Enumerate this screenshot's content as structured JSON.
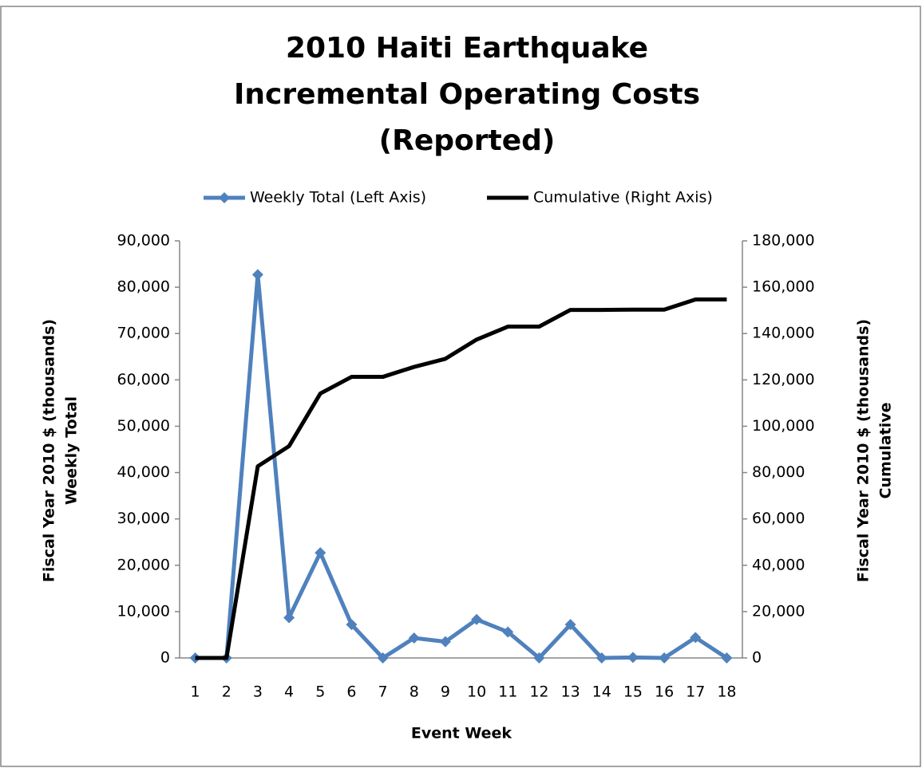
{
  "chart_data": {
    "type": "line",
    "title": [
      "2010 Haiti Earthquake",
      "Incremental Operating Costs",
      "(Reported)"
    ],
    "x_label": "Event Week",
    "y_label": [
      "Fiscal Year 2010 $ (thousands)",
      "Weekly Total"
    ],
    "y2_label": [
      "Fiscal Year 2010 $ (thousands)",
      "Cumulative"
    ],
    "categories": [
      "1",
      "2",
      "3",
      "4",
      "5",
      "6",
      "7",
      "8",
      "9",
      "10",
      "11",
      "12",
      "13",
      "14",
      "15",
      "16",
      "17",
      "18"
    ],
    "series": [
      {
        "name": "Weekly Total (Left Axis)",
        "color": "#4f81bd",
        "marker": "diamond",
        "values": [
          0,
          0,
          82700,
          8700,
          22700,
          7200,
          0,
          4300,
          3500,
          8300,
          5600,
          0,
          7200,
          0,
          100,
          0,
          4400,
          0
        ]
      },
      {
        "name": "Cumulative (Right Axis)",
        "color": "#000000",
        "axis": "y2",
        "values": [
          0,
          0,
          82700,
          91400,
          114100,
          121300,
          121300,
          125600,
          129100,
          137400,
          143000,
          143000,
          150200,
          150200,
          150300,
          150300,
          154700,
          154700
        ]
      }
    ],
    "ylim": [
      0,
      90000
    ],
    "yticks": [
      0,
      {
        "value": 10000,
        "label": "10,000"
      },
      {
        "value": 20000,
        "label": "20,000"
      },
      {
        "value": 30000,
        "label": "30,000"
      },
      {
        "value": 40000,
        "label": "40,000"
      },
      {
        "value": 50000,
        "label": "50,000"
      },
      {
        "value": 60000,
        "label": "60,000"
      },
      {
        "value": 70000,
        "label": "70,000"
      },
      {
        "value": 80000,
        "label": "80,000"
      },
      {
        "value": 90000,
        "label": "90,000"
      }
    ],
    "y2lim": [
      0,
      180000
    ],
    "y2ticks": [
      0,
      {
        "value": 20000,
        "label": "20,000"
      },
      {
        "value": 40000,
        "label": "40,000"
      },
      {
        "value": 60000,
        "label": "60,000"
      },
      {
        "value": 80000,
        "label": "80,000"
      },
      {
        "value": 100000,
        "label": "100,000"
      },
      {
        "value": 120000,
        "label": "120,000"
      },
      {
        "value": 140000,
        "label": "140,000"
      },
      {
        "value": 160000,
        "label": "160,000"
      },
      {
        "value": 180000,
        "label": "180,000"
      }
    ],
    "legend": "top",
    "grid": false
  }
}
